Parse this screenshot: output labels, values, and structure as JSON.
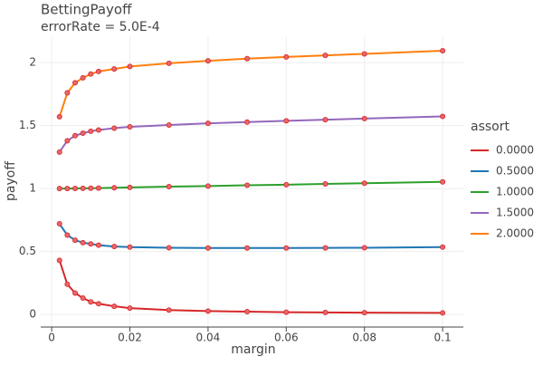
{
  "chart_data": {
    "type": "line",
    "title": "BettingPayoff",
    "subtitle": "errorRate = 5.0E-4",
    "x_label": "margin",
    "y_label": "payoff",
    "legend_title": "assort",
    "legend_position": "right",
    "grid": true,
    "marker_color": "#e8676b",
    "marker_edge_color": "#d62728",
    "x": [
      0.002,
      0.004,
      0.006,
      0.008,
      0.01,
      0.012,
      0.016,
      0.02,
      0.03,
      0.04,
      0.05,
      0.06,
      0.07,
      0.08,
      0.1
    ],
    "series": [
      {
        "name": "0.0000",
        "color": "#d62728",
        "values": [
          0.43,
          0.24,
          0.17,
          0.13,
          0.1,
          0.085,
          0.065,
          0.05,
          0.035,
          0.027,
          0.022,
          0.018,
          0.016,
          0.014,
          0.012
        ]
      },
      {
        "name": "0.5000",
        "color": "#1f77b4",
        "values": [
          0.72,
          0.63,
          0.59,
          0.57,
          0.56,
          0.55,
          0.54,
          0.535,
          0.53,
          0.528,
          0.528,
          0.528,
          0.529,
          0.53,
          0.535
        ]
      },
      {
        "name": "1.0000",
        "color": "#2ca02c",
        "values": [
          1.0,
          1.0,
          1.001,
          1.002,
          1.003,
          1.004,
          1.006,
          1.009,
          1.015,
          1.02,
          1.026,
          1.031,
          1.037,
          1.042,
          1.053
        ]
      },
      {
        "name": "1.5000",
        "color": "#9467bd",
        "values": [
          1.29,
          1.38,
          1.42,
          1.44,
          1.455,
          1.465,
          1.48,
          1.49,
          1.505,
          1.518,
          1.528,
          1.538,
          1.547,
          1.556,
          1.573
        ]
      },
      {
        "name": "2.0000",
        "color": "#ff7f0e",
        "values": [
          1.57,
          1.76,
          1.84,
          1.88,
          1.91,
          1.93,
          1.95,
          1.97,
          1.995,
          2.015,
          2.032,
          2.045,
          2.058,
          2.07,
          2.095
        ]
      }
    ],
    "xlim": [
      -0.0028,
      0.1053
    ],
    "xticks": [
      0,
      0.02,
      0.04,
      0.06,
      0.08,
      0.1
    ],
    "ylim": [
      -0.1,
      2.21
    ],
    "yticks": [
      0,
      0.5,
      1,
      1.5,
      2
    ]
  }
}
